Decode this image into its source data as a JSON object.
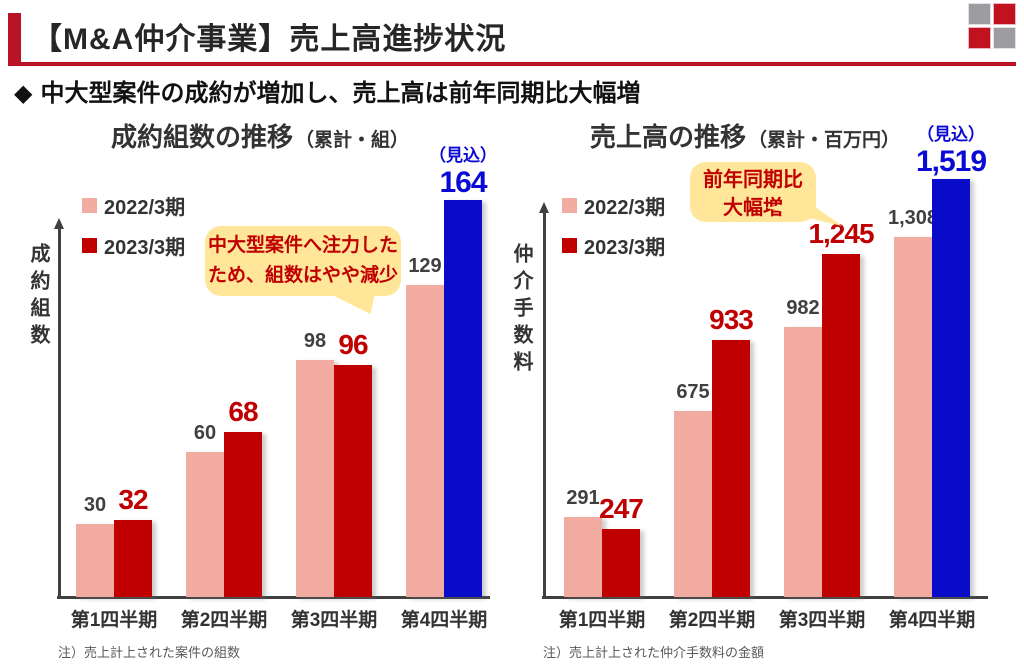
{
  "header": {
    "title": "【M&A仲介事業】売上高進捗状況"
  },
  "subtitle": {
    "bullet": "◆",
    "text": "中大型案件の成約が増加し、売上高は前年同期比大幅増"
  },
  "logo": {
    "gray": "#9D9DA1",
    "red": "#C2121F"
  },
  "colors": {
    "accent_red": "#B81425",
    "bar_2022": "#F2ABA0",
    "bar_2023": "#C00000",
    "bar_forecast": "#0A0ACB",
    "forecast_text": "#0A0AD4",
    "callout_bg": "#FFE699",
    "callout_text": "#C00000",
    "value_label_gray": "#404040",
    "axis": "#404040"
  },
  "chart_data": [
    {
      "type": "bar",
      "title": "成約組数の推移",
      "unit": "（累計・組）",
      "ylabel": "成約組数",
      "categories": [
        "第1四半期",
        "第2四半期",
        "第3四半期",
        "第4四半期"
      ],
      "series": [
        {
          "name": "2022/3期",
          "color": "#F2ABA0",
          "values": [
            30,
            60,
            98,
            129
          ],
          "labels": [
            "30",
            "60",
            "98",
            "129"
          ]
        },
        {
          "name": "2023/3期",
          "color": "#C00000",
          "values": [
            32,
            68,
            96,
            164
          ],
          "labels": [
            "32",
            "68",
            "96",
            "164"
          ],
          "forecast_index": 3
        }
      ],
      "forecast_tag": "（見込）",
      "callout": [
        "中大型案件へ注力した",
        "ため、組数はやや減少"
      ],
      "footnote": "注）売上計上された案件の組数",
      "ylim": [
        0,
        164
      ],
      "legend_position": "top-left",
      "grid": false
    },
    {
      "type": "bar",
      "title": "売上高の推移",
      "unit": "（累計・百万円）",
      "ylabel": "仲介手数料",
      "categories": [
        "第1四半期",
        "第2四半期",
        "第3四半期",
        "第4四半期"
      ],
      "series": [
        {
          "name": "2022/3期",
          "color": "#F2ABA0",
          "values": [
            291,
            675,
            982,
            1308
          ],
          "labels": [
            "291",
            "675",
            "982",
            "1,308"
          ]
        },
        {
          "name": "2023/3期",
          "color": "#C00000",
          "values": [
            247,
            933,
            1245,
            1519
          ],
          "labels": [
            "247",
            "933",
            "1,245",
            "1,519"
          ],
          "forecast_index": 3
        }
      ],
      "forecast_tag": "（見込）",
      "callout": [
        "前年同期比",
        "大幅増"
      ],
      "footnote": "注）売上計上された仲介手数料の金額",
      "ylim": [
        0,
        1519
      ],
      "legend_position": "top-left",
      "grid": false
    }
  ]
}
